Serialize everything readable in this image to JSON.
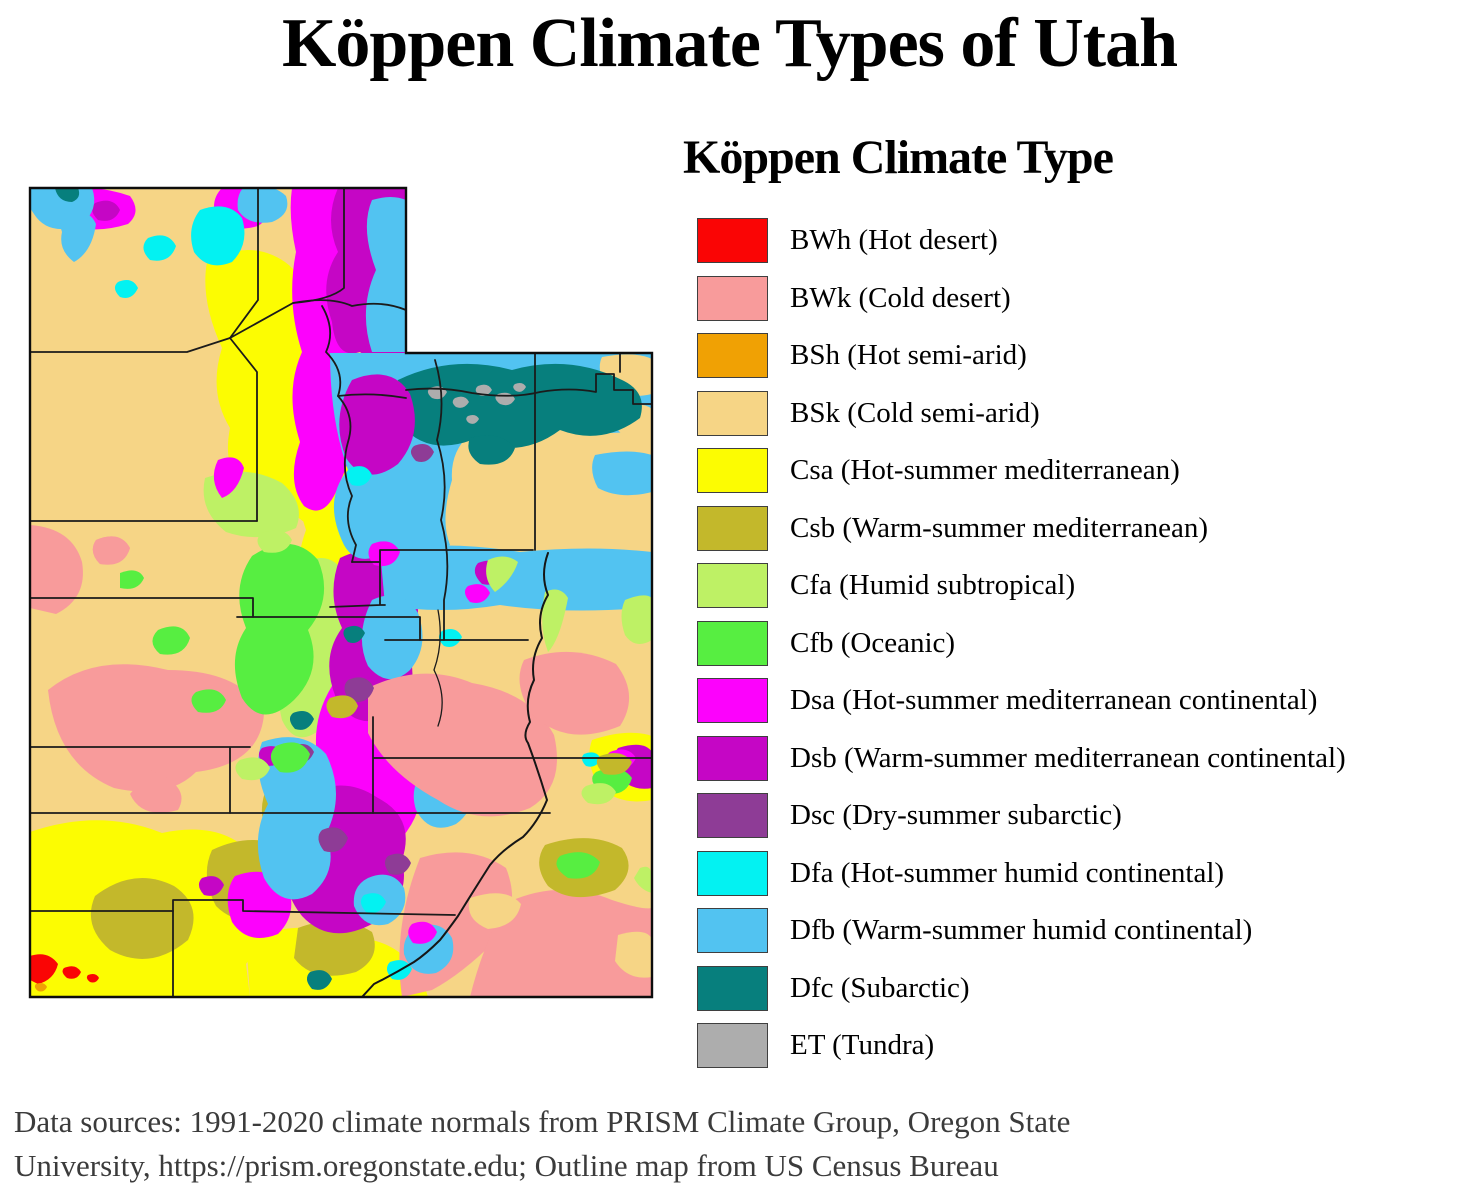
{
  "title": "Köppen Climate Types of Utah",
  "legend": {
    "title": "Köppen Climate Type",
    "items": [
      {
        "code": "BWh",
        "label": "BWh (Hot desert)",
        "color": "#FA0505"
      },
      {
        "code": "BWk",
        "label": "BWk (Cold desert)",
        "color": "#F89B9B"
      },
      {
        "code": "BSh",
        "label": "BSh (Hot semi-arid)",
        "color": "#F0A104"
      },
      {
        "code": "BSk",
        "label": "BSk (Cold semi-arid)",
        "color": "#F6D586"
      },
      {
        "code": "Csa",
        "label": "Csa (Hot-summer mediterranean)",
        "color": "#FCFC02"
      },
      {
        "code": "Csb",
        "label": "Csb (Warm-summer mediterranean)",
        "color": "#C3B82B"
      },
      {
        "code": "Cfa",
        "label": "Cfa (Humid subtropical)",
        "color": "#BEF165"
      },
      {
        "code": "Cfb",
        "label": "Cfb (Oceanic)",
        "color": "#57EE41"
      },
      {
        "code": "Dsa",
        "label": "Dsa (Hot-summer mediterranean continental)",
        "color": "#FC02FC"
      },
      {
        "code": "Dsb",
        "label": "Dsb (Warm-summer mediterranean continental)",
        "color": "#C506C5"
      },
      {
        "code": "Dsc",
        "label": "Dsc (Dry-summer subarctic)",
        "color": "#8E3C96"
      },
      {
        "code": "Dfa",
        "label": "Dfa (Hot-summer humid continental)",
        "color": "#03F2F2"
      },
      {
        "code": "Dfb",
        "label": "Dfb (Warm-summer humid continental)",
        "color": "#52C3F1"
      },
      {
        "code": "Dfc",
        "label": "Dfc (Subarctic)",
        "color": "#077F7D"
      },
      {
        "code": "ET",
        "label": "ET (Tundra)",
        "color": "#ADADAD"
      }
    ]
  },
  "footer": {
    "line1": "Data sources: 1991-2020 climate normals from PRISM Climate Group, Oregon State",
    "line2": "University, https://prism.oregonstate.edu; Outline map from US Census Bureau"
  }
}
